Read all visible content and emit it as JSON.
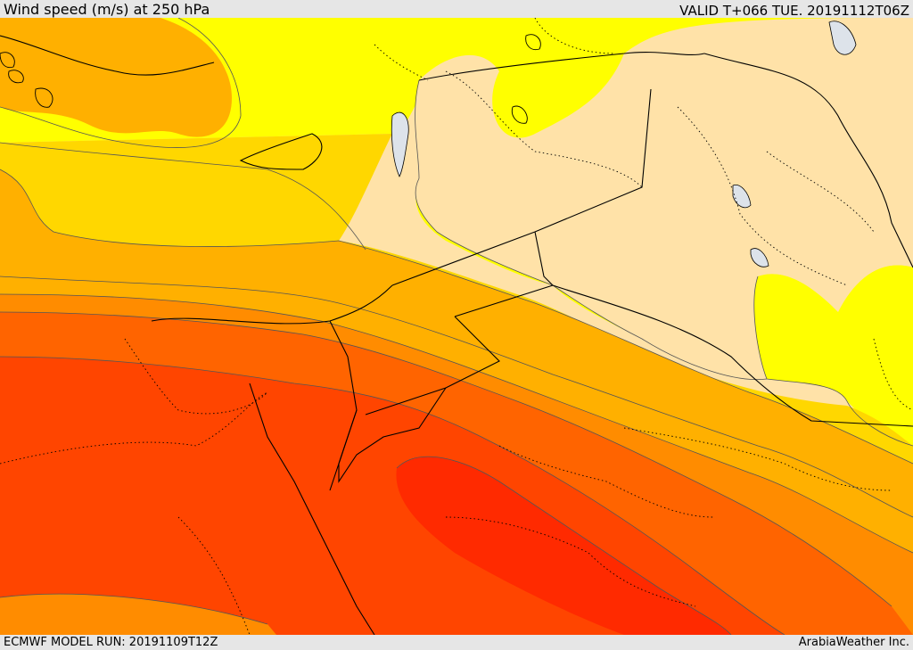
{
  "header": {
    "title": "Wind speed (m/s) at 250 hPa",
    "valid": "VALID T+066 TUE. 20191112T06Z"
  },
  "footer": {
    "model_run": "ECMWF MODEL RUN: 20191109T12Z",
    "credit": "ArabiaWeather Inc."
  },
  "map": {
    "colors": {
      "band_1": "#ffe2a8",
      "band_2": "#ffff00",
      "band_3": "#ffd700",
      "band_4": "#ffb000",
      "band_5": "#ff8c00",
      "band_6": "#ff6400",
      "band_7": "#ff4500",
      "band_8": "#ff2a00",
      "water": "#dde3ea",
      "contour": "#555555",
      "border": "#000000"
    }
  }
}
